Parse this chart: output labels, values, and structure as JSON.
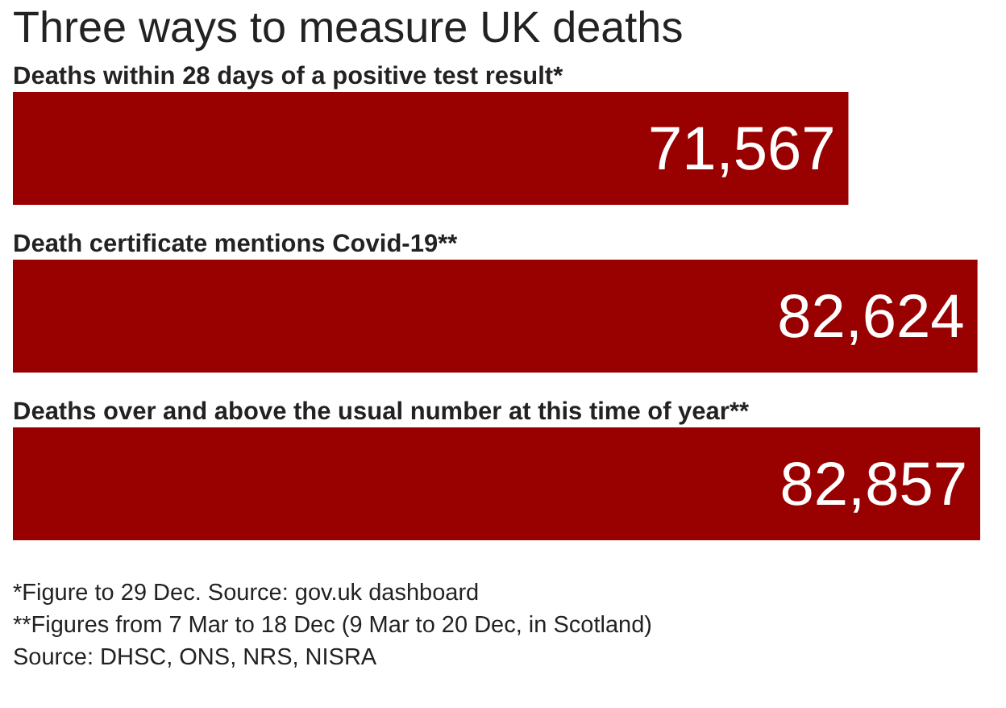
{
  "chart_data": {
    "type": "bar",
    "orientation": "horizontal",
    "title": "Three ways to measure UK deaths",
    "categories": [
      "Deaths within 28 days of a positive test result*",
      "Death certificate mentions Covid-19**",
      "Deaths over and above the usual number at this time of year**"
    ],
    "values": [
      71567,
      82624,
      82857
    ],
    "color": "#990000",
    "value_labels": [
      "71,567",
      "82,624",
      "82,857"
    ],
    "annotations": [
      "*Figure to 29 Dec. Source: gov.uk dashboard",
      "**Figures from 7 Mar to 18 Dec (9 Mar to 20 Dec, in Scotland)",
      "Source: DHSC, ONS, NRS, NISRA"
    ]
  }
}
